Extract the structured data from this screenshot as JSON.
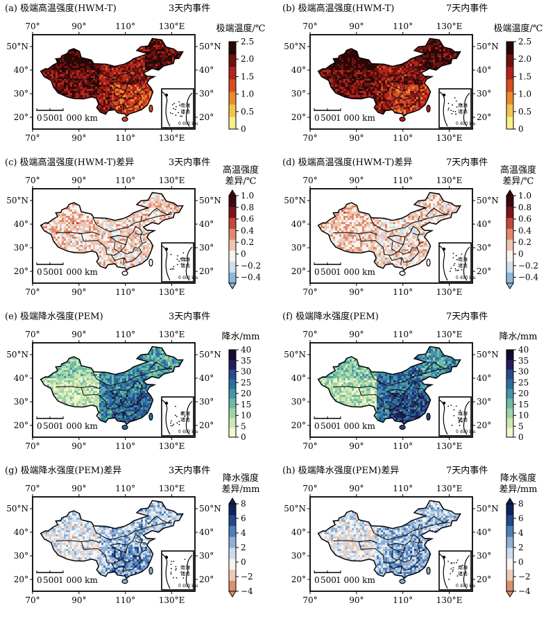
{
  "panels": [
    {
      "label": "(a) 极端高温强度(HWM-T)",
      "event": "3天内事件",
      "cbar_title": [
        "极端温度/℃"
      ],
      "ticks": [
        "0",
        "0.5",
        "1.0",
        "1.5",
        "2.0",
        "2.5"
      ],
      "range": [
        0,
        2.5
      ],
      "scheme": "heat",
      "tri_low": false,
      "tri_high": false,
      "fill": [
        0.78,
        0.92,
        0.55,
        0.7,
        0.85
      ]
    },
    {
      "label": "(b) 极端高温强度(HWM-T)",
      "event": "7天内事件",
      "cbar_title": [
        "极端温度/℃"
      ],
      "ticks": [
        "0",
        "0.5",
        "1.0",
        "1.5",
        "2.0",
        "2.5"
      ],
      "range": [
        0,
        2.5
      ],
      "scheme": "heat",
      "tri_low": false,
      "tri_high": false,
      "fill": [
        0.8,
        0.94,
        0.58,
        0.72,
        0.87
      ]
    },
    {
      "label": "(c) 极端高温强度(HWM-T)差异",
      "event": "3天内事件",
      "cbar_title": [
        "高温强度",
        "差异/℃"
      ],
      "ticks": [
        "−0.4",
        "−0.2",
        "0",
        "0.2",
        "0.4",
        "0.6",
        "0.8",
        "1.0"
      ],
      "range": [
        -0.5,
        1.0
      ],
      "scheme": "diffheat",
      "tri_low": true,
      "tri_high": true,
      "fill": [
        0.4,
        0.45,
        0.36,
        0.38,
        0.4
      ]
    },
    {
      "label": "(d) 极端高温强度(HWM-T)差异",
      "event": "7天内事件",
      "cbar_title": [
        "高温强度",
        "差异/℃"
      ],
      "ticks": [
        "−0.4",
        "−0.2",
        "0",
        "0.2",
        "0.4",
        "0.6",
        "0.8",
        "1.0"
      ],
      "range": [
        -0.5,
        1.0
      ],
      "scheme": "diffheat",
      "tri_low": true,
      "tri_high": true,
      "fill": [
        0.42,
        0.44,
        0.37,
        0.36,
        0.39
      ]
    },
    {
      "label": "(e) 极端降水强度(PEM)",
      "event": "3天内事件",
      "cbar_title": [
        "降水/mm"
      ],
      "ticks": [
        "0",
        "5",
        "10",
        "15",
        "20",
        "25",
        "30",
        "35",
        "40"
      ],
      "range": [
        0,
        40
      ],
      "scheme": "precip",
      "tri_low": false,
      "tri_high": false,
      "fill": [
        0.18,
        0.3,
        0.62,
        0.55,
        0.45
      ]
    },
    {
      "label": "(f) 极端降水强度(PEM)",
      "event": "7天内事件",
      "cbar_title": [
        "降水/mm"
      ],
      "ticks": [
        "0",
        "5",
        "10",
        "15",
        "20",
        "25",
        "30",
        "35",
        "40"
      ],
      "range": [
        0,
        40
      ],
      "scheme": "precip",
      "tri_low": false,
      "tri_high": false,
      "fill": [
        0.22,
        0.34,
        0.7,
        0.6,
        0.5
      ]
    },
    {
      "label": "(g) 极端降水强度(PEM)差异",
      "event": "3天内事件",
      "cbar_title": [
        "降水强度",
        "差异/mm"
      ],
      "ticks": [
        "−4",
        "−2",
        "0",
        "2",
        "4",
        "6",
        "8"
      ],
      "range": [
        -4,
        8
      ],
      "scheme": "diffprecip",
      "tri_low": true,
      "tri_high": true,
      "fill": [
        0.36,
        0.4,
        0.62,
        0.5,
        0.48
      ]
    },
    {
      "label": "(h) 极端降水强度(PEM)差异",
      "event": "7天内事件",
      "cbar_title": [
        "降水强度",
        "差异/mm"
      ],
      "ticks": [
        "−4",
        "−2",
        "0",
        "2",
        "4",
        "6",
        "8"
      ],
      "range": [
        -4,
        8
      ],
      "scheme": "diffprecip",
      "tri_low": true,
      "tri_high": true,
      "fill": [
        0.36,
        0.4,
        0.58,
        0.52,
        0.47
      ]
    }
  ],
  "axes": {
    "lon_ticks": [
      "70°",
      "90°",
      "110°",
      "130°E"
    ],
    "lat_ticks_left": [
      "50°N",
      "40°",
      "30°",
      "20°"
    ],
    "lat_ticks_right": [
      "50°N",
      "40°",
      "30°",
      "20°"
    ],
    "lon_range": [
      70,
      140
    ],
    "lat_range": [
      15,
      55
    ]
  },
  "scale_bar": {
    "labels": [
      "0",
      "500",
      "1 000 km"
    ]
  },
  "inset": {
    "label": [
      "南海",
      "诸岛"
    ],
    "scale": "0 400 km"
  },
  "colors": {
    "heat": [
      "#f5f08a",
      "#f2c44a",
      "#ec8a2e",
      "#d84d22",
      "#b1241c",
      "#6d1210",
      "#2a0705"
    ],
    "diffheat": [
      "#8fb8d8",
      "#cfe0ec",
      "#f7f4f0",
      "#f0c4ae",
      "#e08a70",
      "#c2483c",
      "#7d1420",
      "#3a0a0c"
    ],
    "precip": [
      "#f4f7c9",
      "#cde6b2",
      "#9fd3a8",
      "#6cbba6",
      "#4197a8",
      "#2e6f9f",
      "#2a4a8c",
      "#241f5e",
      "#150a2e"
    ],
    "diffprecip": [
      "#d8906e",
      "#efc9b3",
      "#f6f3f1",
      "#cddbec",
      "#8db1d6",
      "#4f7fb8",
      "#24488a",
      "#0f2358"
    ]
  }
}
